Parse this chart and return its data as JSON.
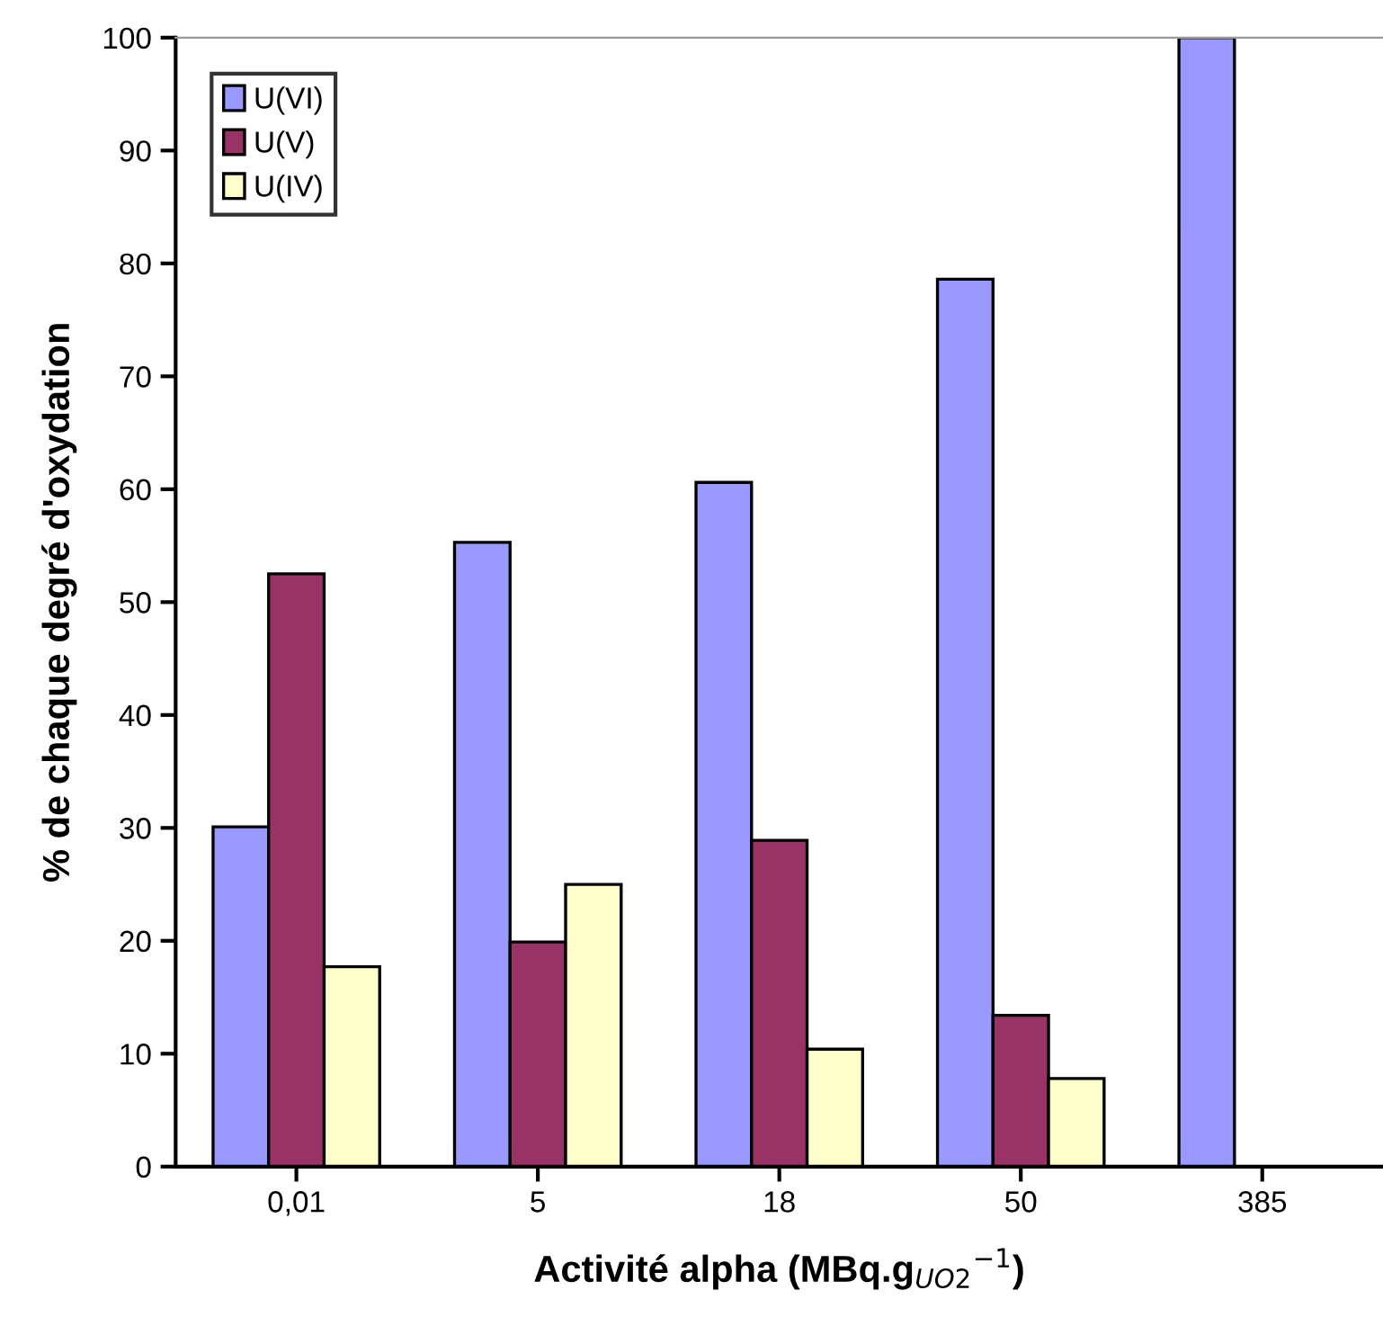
{
  "chart_data": {
    "type": "bar",
    "xlabel": "Activité alpha (MBq.g$_{UO2}$$^{−1}$)",
    "ylabel": "% de chaque degré d'oxydation",
    "categories": [
      "0,01",
      "5",
      "18",
      "50",
      "385"
    ],
    "series": [
      {
        "name": "U(VI)",
        "color": "#9999ff",
        "values": [
          30.1,
          55.3,
          60.6,
          78.6,
          100
        ]
      },
      {
        "name": "U(V)",
        "color": "#993366",
        "values": [
          52.5,
          19.9,
          28.9,
          13.4,
          null
        ]
      },
      {
        "name": "U(IV)",
        "color": "#ffffcc",
        "values": [
          17.7,
          25.0,
          10.4,
          7.8,
          null
        ]
      }
    ],
    "ylim": [
      0,
      100
    ],
    "yticks": [
      0,
      10,
      20,
      30,
      40,
      50,
      60,
      70,
      80,
      90,
      100
    ],
    "grid": false,
    "legend": "top left"
  }
}
